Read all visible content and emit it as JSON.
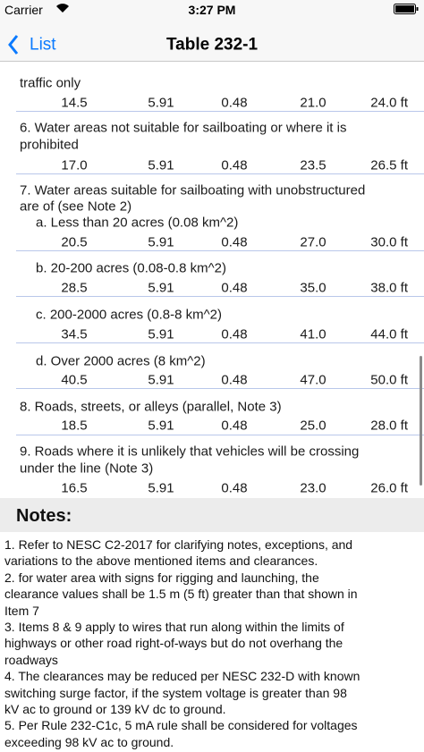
{
  "status_bar": {
    "carrier": "Carrier",
    "time": "3:27 PM"
  },
  "nav_bar": {
    "back": "List",
    "title": "Table 232-1"
  },
  "rows": [
    {
      "label": [
        "traffic only"
      ],
      "values": [
        "14.5",
        "5.91",
        "0.48",
        "21.0",
        "24.0 ft"
      ]
    },
    {
      "label": [
        "6. Water areas not suitable for sailboating or where it is",
        "prohibited"
      ],
      "values": [
        "17.0",
        "5.91",
        "0.48",
        "23.5",
        "26.5 ft"
      ]
    },
    {
      "label": [
        "7. Water areas suitable for sailboating with unobstructured",
        "are of (see Note 2)"
      ],
      "sublabel": "a. Less than 20 acres (0.08 km^2)",
      "values": [
        "20.5",
        "5.91",
        "0.48",
        "27.0",
        "30.0 ft"
      ]
    },
    {
      "sublabel": "b. 20-200 acres (0.08-0.8 km^2)",
      "values": [
        "28.5",
        "5.91",
        "0.48",
        "35.0",
        "38.0 ft"
      ]
    },
    {
      "sublabel": "c. 200-2000 acres (0.8-8 km^2)",
      "values": [
        "34.5",
        "5.91",
        "0.48",
        "41.0",
        "44.0 ft"
      ]
    },
    {
      "sublabel": "d. Over 2000 acres (8 km^2)",
      "values": [
        "40.5",
        "5.91",
        "0.48",
        "47.0",
        "50.0 ft"
      ]
    },
    {
      "label": [
        "8. Roads, streets, or alleys (parallel, Note 3)"
      ],
      "values": [
        "18.5",
        "5.91",
        "0.48",
        "25.0",
        "28.0 ft"
      ]
    },
    {
      "label": [
        "9. Roads where it is unlikely that vehicles will be crossing",
        "under the line (Note 3)"
      ],
      "values": [
        "16.5",
        "5.91",
        "0.48",
        "23.0",
        "26.0 ft"
      ]
    }
  ],
  "notes": {
    "title": "Notes:",
    "lines": [
      "1. Refer to NESC C2-2017 for clarifying notes, exceptions, and",
      "variations to the above mentioned items and clearances.",
      "2. for water area with signs for rigging and launching, the",
      "clearance values shall be 1.5 m (5 ft) greater than that shown in",
      "Item 7",
      "3. Items 8 & 9 apply to wires that run along within the limits of",
      "highways or other road right-of-ways but do not overhang the",
      "roadways",
      "4. The clearances may be reduced per NESC 232-D with known",
      "switching surge factor, if the system voltage is greater than 98",
      "kV ac to ground or 139 kV dc to ground.",
      "5. Per Rule 232-C1c, 5 mA rule shall be considered for voltages",
      "exceeding 98 kV ac to ground."
    ]
  }
}
